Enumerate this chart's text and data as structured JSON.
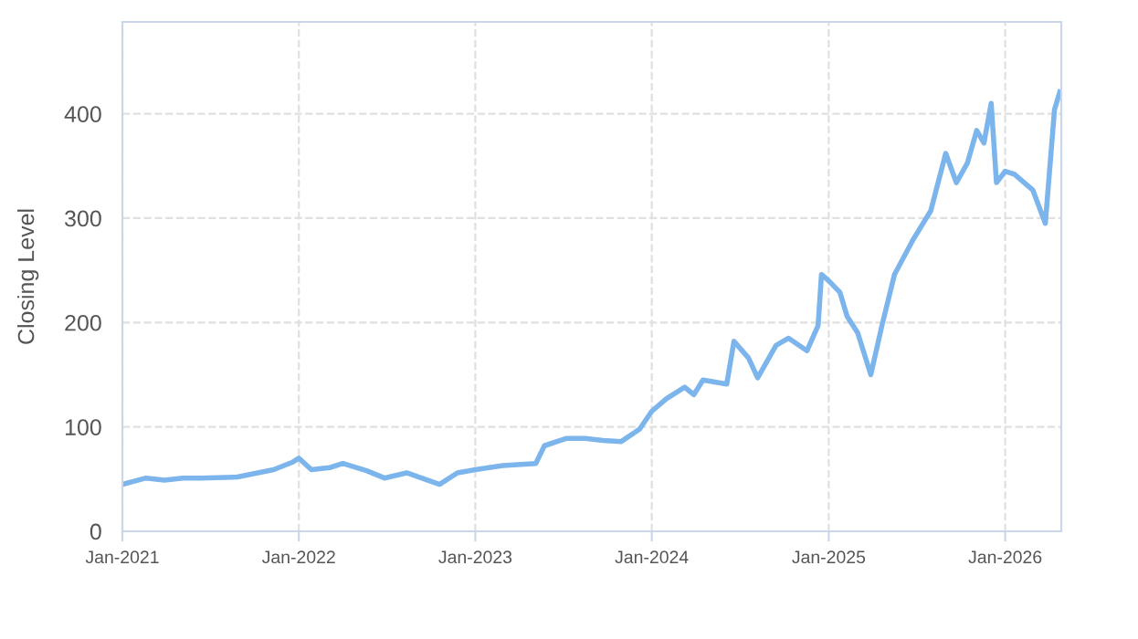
{
  "chart_data": {
    "type": "line",
    "ylabel": "Closing Level",
    "x": [
      "2021-01-01",
      "2021-02-19",
      "2021-03-29",
      "2021-05-06",
      "2021-06-12",
      "2021-08-27",
      "2021-11-10",
      "2021-12-18",
      "2022-01-01",
      "2022-01-27",
      "2022-03-06",
      "2022-04-02",
      "2022-05-21",
      "2022-06-27",
      "2022-08-12",
      "2022-10-19",
      "2022-11-25",
      "2023-01-01",
      "2023-02-27",
      "2023-05-06",
      "2023-05-24",
      "2023-07-09",
      "2023-08-16",
      "2023-09-22",
      "2023-10-30",
      "2023-12-07",
      "2024-01-01",
      "2024-01-31",
      "2024-03-09",
      "2024-03-28",
      "2024-04-16",
      "2024-06-04",
      "2024-06-19",
      "2024-07-19",
      "2024-08-07",
      "2024-09-14",
      "2024-10-10",
      "2024-11-17",
      "2024-12-10",
      "2024-12-17",
      "2025-01-01",
      "2025-01-24",
      "2025-02-08",
      "2025-03-02",
      "2025-03-29",
      "2025-04-21",
      "2025-05-17",
      "2025-06-24",
      "2025-07-31",
      "2025-08-31",
      "2025-09-22",
      "2025-10-15",
      "2025-11-03",
      "2025-11-18",
      "2025-12-03",
      "2025-12-14",
      "2026-01-01",
      "2026-01-20",
      "2026-02-27",
      "2026-03-25",
      "2026-04-13",
      "2026-04-24"
    ],
    "series": [
      {
        "color": "#7cb5ec",
        "values": [
          45,
          51,
          49,
          51,
          51,
          52,
          59,
          66,
          70,
          59,
          61,
          65,
          58,
          51,
          56,
          45,
          56,
          59,
          63,
          65,
          82,
          89,
          89,
          87,
          86,
          98,
          115,
          127,
          138,
          131,
          145,
          141,
          182,
          166,
          147,
          178,
          185,
          173,
          197,
          246,
          240,
          229,
          206,
          190,
          150,
          197,
          246,
          279,
          307,
          362,
          334,
          353,
          384,
          372,
          410,
          334,
          345,
          342,
          327,
          295,
          404,
          421
        ]
      }
    ],
    "xlim": [
      "2021-01-01",
      "2026-04-27"
    ],
    "xticks": [
      {
        "value": "2021-01-01",
        "label": "Jan-2021"
      },
      {
        "value": "2022-01-01",
        "label": "Jan-2022"
      },
      {
        "value": "2023-01-01",
        "label": "Jan-2023"
      },
      {
        "value": "2024-01-01",
        "label": "Jan-2024"
      },
      {
        "value": "2025-01-01",
        "label": "Jan-2025"
      },
      {
        "value": "2026-01-01",
        "label": "Jan-2026"
      }
    ],
    "ylim": [
      0,
      488
    ],
    "yticks": [
      0,
      100,
      200,
      300,
      400
    ],
    "grid": true,
    "line_style": "solid",
    "marker": "none"
  }
}
